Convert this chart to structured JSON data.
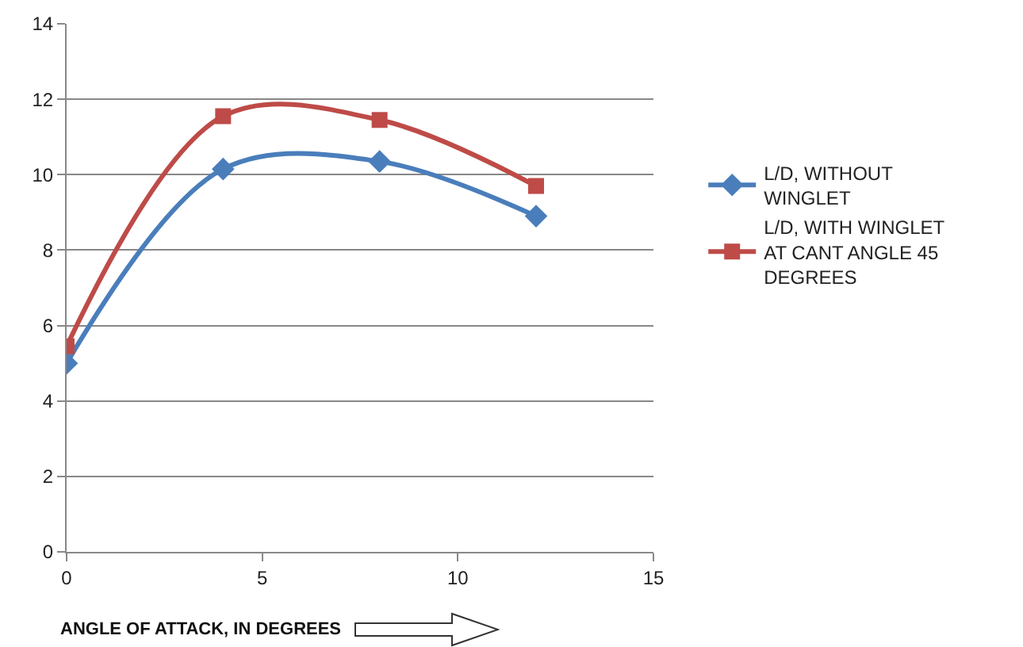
{
  "chart_data": {
    "type": "line",
    "xlabel": "ANGLE OF ATTACK, IN DEGREES",
    "x": [
      0,
      4,
      8,
      12
    ],
    "series": [
      {
        "name": "L/D, WITHOUT WINGLET",
        "color": "#4a7ebb",
        "marker": "diamond",
        "values": [
          5.0,
          10.15,
          10.35,
          8.9
        ]
      },
      {
        "name": "L/D, WITH WINGLET AT CANT ANGLE 45 DEGREES",
        "color": "#be4b48",
        "marker": "square",
        "values": [
          5.45,
          11.55,
          11.45,
          9.7
        ]
      }
    ],
    "xlim": [
      0,
      15
    ],
    "xticks": [
      0,
      5,
      10,
      15
    ],
    "ylim": [
      0,
      14
    ],
    "yticks": [
      0,
      2,
      4,
      6,
      8,
      10,
      12,
      14
    ],
    "grid": "y",
    "legend": "right"
  }
}
